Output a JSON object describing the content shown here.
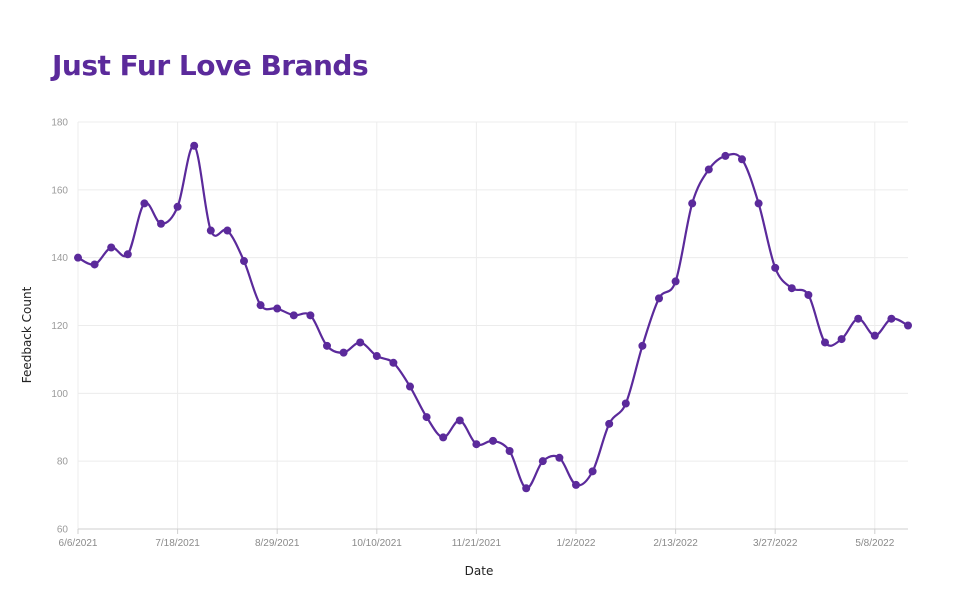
{
  "chart_data": {
    "type": "line",
    "title": "Just Fur Love Brands",
    "xlabel": "Date",
    "ylabel": "Feedback Count",
    "ylim": [
      60,
      180
    ],
    "y_ticks": [
      60,
      80,
      100,
      120,
      140,
      160,
      180
    ],
    "x_tick_labels": [
      "6/6/2021",
      "7/18/2021",
      "8/29/2021",
      "10/10/2021",
      "11/21/2021",
      "1/2/2022",
      "2/13/2022",
      "3/27/2022",
      "5/8/2022"
    ],
    "x": [
      "6/6/2021",
      "6/13/2021",
      "6/20/2021",
      "6/27/2021",
      "7/4/2021",
      "7/11/2021",
      "7/18/2021",
      "7/25/2021",
      "8/1/2021",
      "8/8/2021",
      "8/15/2021",
      "8/22/2021",
      "8/29/2021",
      "9/5/2021",
      "9/12/2021",
      "9/19/2021",
      "9/26/2021",
      "10/3/2021",
      "10/10/2021",
      "10/17/2021",
      "10/24/2021",
      "10/31/2021",
      "11/7/2021",
      "11/14/2021",
      "11/21/2021",
      "11/28/2021",
      "12/5/2021",
      "12/12/2021",
      "12/19/2021",
      "12/26/2021",
      "1/2/2022",
      "1/9/2022",
      "1/16/2022",
      "1/23/2022",
      "1/30/2022",
      "2/6/2022",
      "2/13/2022",
      "2/20/2022",
      "2/27/2022",
      "3/6/2022",
      "3/13/2022",
      "3/20/2022",
      "3/27/2022",
      "4/3/2022",
      "4/10/2022",
      "4/17/2022",
      "4/24/2022",
      "5/1/2022",
      "5/8/2022",
      "5/15/2022",
      "5/22/2022"
    ],
    "series": [
      {
        "values": [
          140,
          138,
          143,
          141,
          156,
          150,
          155,
          173,
          148,
          148,
          139,
          126,
          125,
          123,
          123,
          114,
          112,
          115,
          111,
          109,
          102,
          93,
          87,
          92,
          85,
          86,
          83,
          72,
          80,
          81,
          73,
          77,
          91,
          97,
          114,
          128,
          133,
          156,
          166,
          170,
          169,
          156,
          137,
          131,
          129,
          115,
          116,
          122,
          117,
          122,
          120
        ],
        "color": "#5b2a9b"
      }
    ],
    "grid": true,
    "legend": "none",
    "title_color": "#5b2a9b"
  }
}
